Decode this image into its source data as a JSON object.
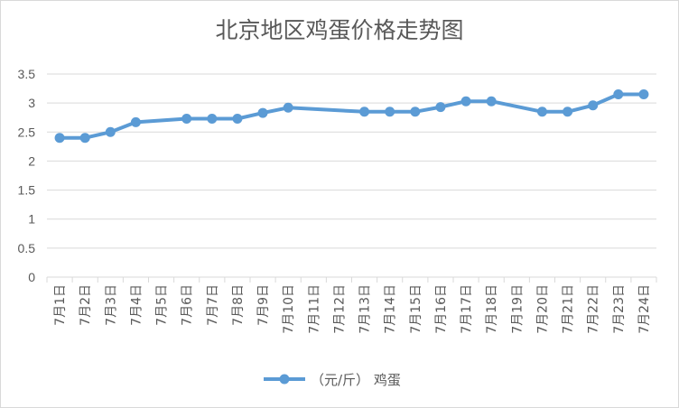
{
  "chart_data": {
    "type": "line",
    "title": "北京地区鸡蛋价格走势图",
    "categories": [
      "7月1日",
      "7月2日",
      "7月3日",
      "7月4日",
      "7月5日",
      "7月6日",
      "7月7日",
      "7月8日",
      "7月9日",
      "7月10日",
      "7月11日",
      "7月12日",
      "7月13日",
      "7月14日",
      "7月15日",
      "7月16日",
      "7月17日",
      "7月18日",
      "7月19日",
      "7月20日",
      "7月21日",
      "7月22日",
      "7月23日",
      "7月24日"
    ],
    "series": [
      {
        "name": "（元/斤） 鸡蛋",
        "color": "#5b9bd5",
        "values": [
          2.4,
          2.4,
          2.5,
          2.67,
          null,
          2.73,
          2.73,
          2.73,
          2.83,
          2.92,
          null,
          null,
          2.85,
          2.85,
          2.85,
          2.93,
          3.03,
          3.03,
          null,
          2.85,
          2.85,
          2.96,
          3.15,
          3.15
        ]
      }
    ],
    "xlabel": "",
    "ylabel": "",
    "ylim": [
      0,
      3.5
    ],
    "yticks": [
      "0",
      "0.5",
      "1",
      "1.5",
      "2",
      "2.5",
      "3",
      "3.5"
    ],
    "grid": true,
    "legend": "bottom"
  }
}
